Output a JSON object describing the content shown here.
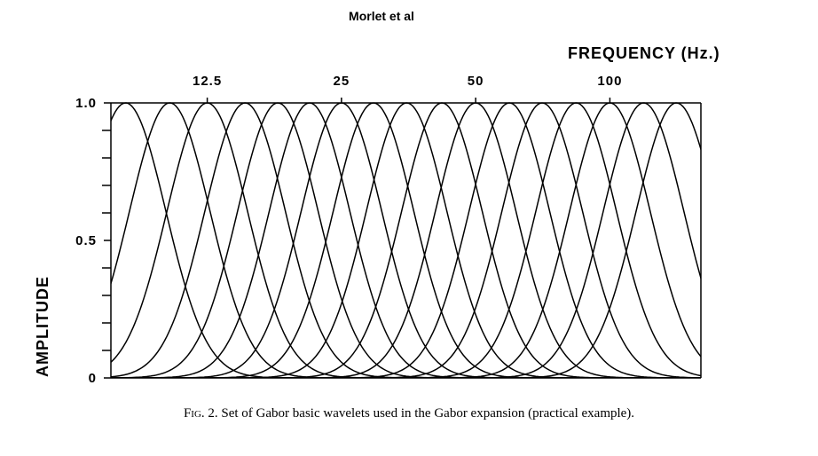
{
  "chart_data": {
    "type": "line",
    "title": "Morlet et al",
    "xlabel": "FREQUENCY (Hz.)",
    "ylabel": "AMPLITUDE",
    "ylim": [
      0,
      1.0
    ],
    "y_ticks": [
      {
        "value": 0,
        "label": "0"
      },
      {
        "value": 0.5,
        "label": "0.5"
      },
      {
        "value": 1.0,
        "label": "1.0"
      }
    ],
    "x_ticks": [
      {
        "value": 12.5,
        "label": "12.5"
      },
      {
        "value": 25,
        "label": "25"
      },
      {
        "value": 50,
        "label": "50"
      },
      {
        "value": 100,
        "label": "100"
      }
    ],
    "x_scale": "log2",
    "xlim": [
      7.6,
      160
    ],
    "curve_center_frequencies_hz": [
      8.2,
      10.3,
      12.5,
      15.2,
      18.0,
      21.2,
      25.0,
      29.5,
      35.0,
      42.0,
      50.0,
      59.5,
      70.5,
      84.0,
      100.0,
      119.0,
      141.0
    ],
    "curve_peak_amplitude": 1.0,
    "grid": false
  },
  "caption": {
    "fig_label": "Fig. 2.",
    "text": " Set of Gabor basic wavelets used in the Gabor expansion (practical example)."
  }
}
